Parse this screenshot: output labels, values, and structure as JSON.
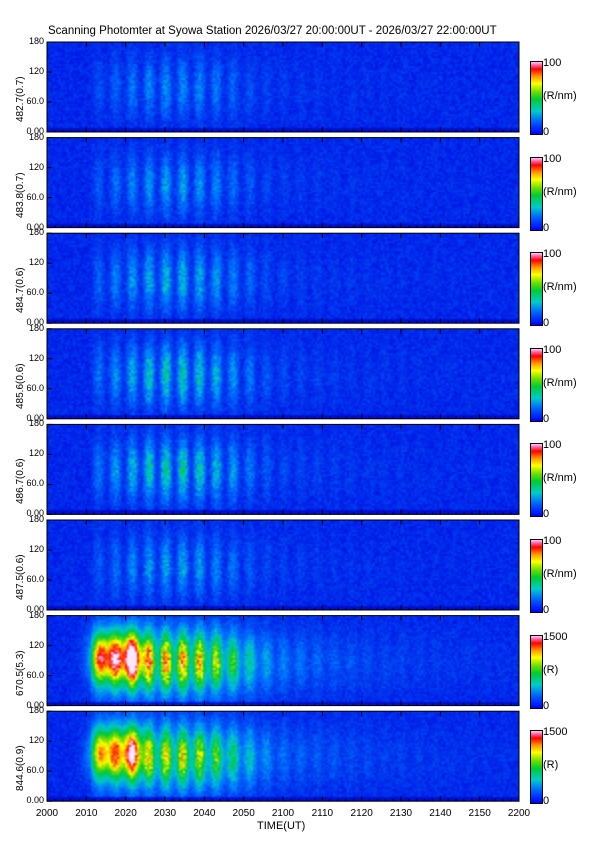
{
  "chart_data": {
    "type": "heatmap",
    "title": "Scanning Photomter at Syowa Station 2026/03/27 20:00:00UT - 2026/03/27 22:00:00UT",
    "xlabel": "TIME(UT)",
    "x_ticks": [
      "2000",
      "2010",
      "2020",
      "2030",
      "2040",
      "2050",
      "2100",
      "2110",
      "2120",
      "2130",
      "2140",
      "2150",
      "2200"
    ],
    "y_ticks": [
      "0.00",
      "60.0",
      "120",
      "180"
    ],
    "ylim": [
      0,
      180
    ],
    "panels": [
      {
        "ylabel": "482.7(0.7)",
        "cbar_max": "100",
        "cbar_unit": "(R/nm)",
        "intensity": 0.35
      },
      {
        "ylabel": "483.8(0.7)",
        "cbar_max": "100",
        "cbar_unit": "(R/nm)",
        "intensity": 0.4
      },
      {
        "ylabel": "484.7(0.6)",
        "cbar_max": "100",
        "cbar_unit": "(R/nm)",
        "intensity": 0.5
      },
      {
        "ylabel": "485.6(0.6)",
        "cbar_max": "100",
        "cbar_unit": "(R/nm)",
        "intensity": 0.62
      },
      {
        "ylabel": "486.7(0.6)",
        "cbar_max": "100",
        "cbar_unit": "(R/nm)",
        "intensity": 0.66
      },
      {
        "ylabel": "487.5(0.6)",
        "cbar_max": "100",
        "cbar_unit": "(R/nm)",
        "intensity": 0.42
      },
      {
        "ylabel": "670.5(5.3)",
        "cbar_max": "1500",
        "cbar_unit": "(R)",
        "intensity": 1.0
      },
      {
        "ylabel": "844.6(0.9)",
        "cbar_max": "1500",
        "cbar_unit": "(R)",
        "intensity": 0.85
      }
    ],
    "cbar_min": "0"
  }
}
